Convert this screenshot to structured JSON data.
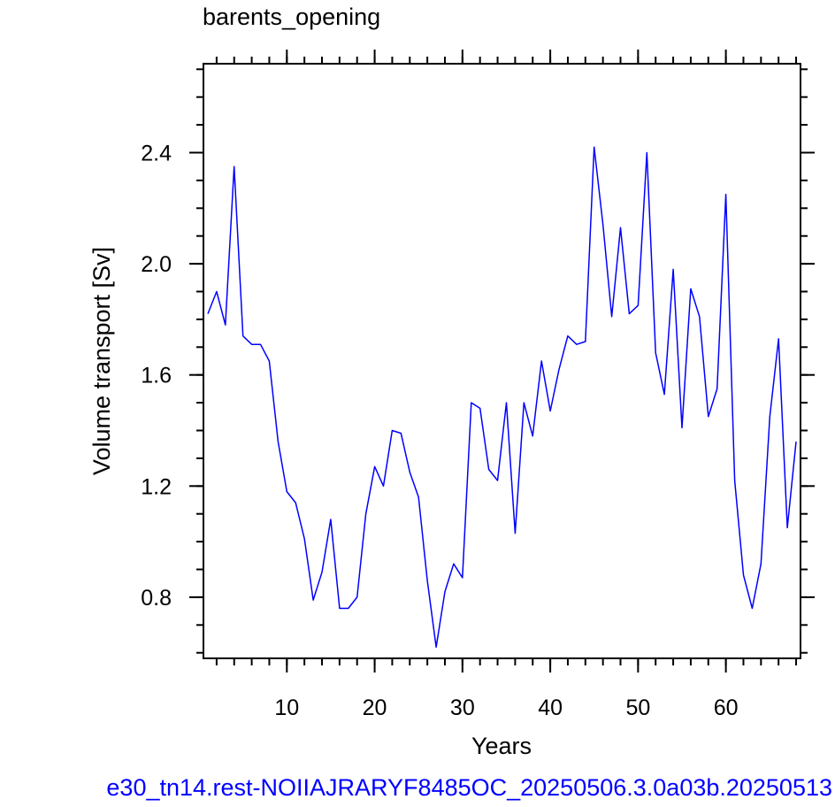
{
  "chart_data": {
    "type": "line",
    "title": "barents_opening",
    "xlabel": "Years",
    "ylabel": "Volume transport [Sv]",
    "xlim": [
      0.5,
      68.5
    ],
    "ylim": [
      0.58,
      2.72
    ],
    "xticks": [
      10,
      20,
      30,
      40,
      50,
      60
    ],
    "yticks": [
      0.8,
      1.2,
      1.6,
      2.0,
      2.4
    ],
    "ytick_labels": [
      "0.8",
      "1.2",
      "1.6",
      "2.0",
      "2.4"
    ],
    "x_minor_step": 2,
    "y_minor_step": 0.1,
    "grid": false,
    "series": [
      {
        "color": "#0000ff",
        "x": [
          1,
          2,
          3,
          4,
          5,
          6,
          7,
          8,
          9,
          10,
          11,
          12,
          13,
          14,
          15,
          16,
          17,
          18,
          19,
          20,
          21,
          22,
          23,
          24,
          25,
          26,
          27,
          28,
          29,
          30,
          31,
          32,
          33,
          34,
          35,
          36,
          37,
          38,
          39,
          40,
          41,
          42,
          43,
          44,
          45,
          46,
          47,
          48,
          49,
          50,
          51,
          52,
          53,
          54,
          55,
          56,
          57,
          58,
          59,
          60,
          61,
          62,
          63,
          64,
          65,
          66,
          67,
          68
        ],
        "values": [
          1.82,
          1.9,
          1.78,
          2.35,
          1.74,
          1.71,
          1.71,
          1.65,
          1.36,
          1.18,
          1.14,
          1.01,
          0.79,
          0.89,
          1.08,
          0.76,
          0.76,
          0.8,
          1.1,
          1.27,
          1.2,
          1.4,
          1.39,
          1.25,
          1.16,
          0.86,
          0.62,
          0.82,
          0.92,
          0.87,
          1.5,
          1.48,
          1.26,
          1.22,
          1.5,
          1.03,
          1.5,
          1.38,
          1.65,
          1.47,
          1.62,
          1.74,
          1.71,
          1.72,
          2.42,
          2.14,
          1.81,
          2.13,
          1.82,
          1.85,
          2.4,
          1.68,
          1.53,
          1.98,
          1.41,
          1.91,
          1.81,
          1.45,
          1.55,
          2.25,
          1.22,
          0.88,
          0.76,
          0.92,
          1.45,
          1.73,
          1.05,
          1.36
        ]
      }
    ]
  },
  "footer": {
    "text": "e30_tn14.rest-NOIIAJRARYF8485OC_20250506.3.0a03b.20250513",
    "color": "#0000ff"
  }
}
